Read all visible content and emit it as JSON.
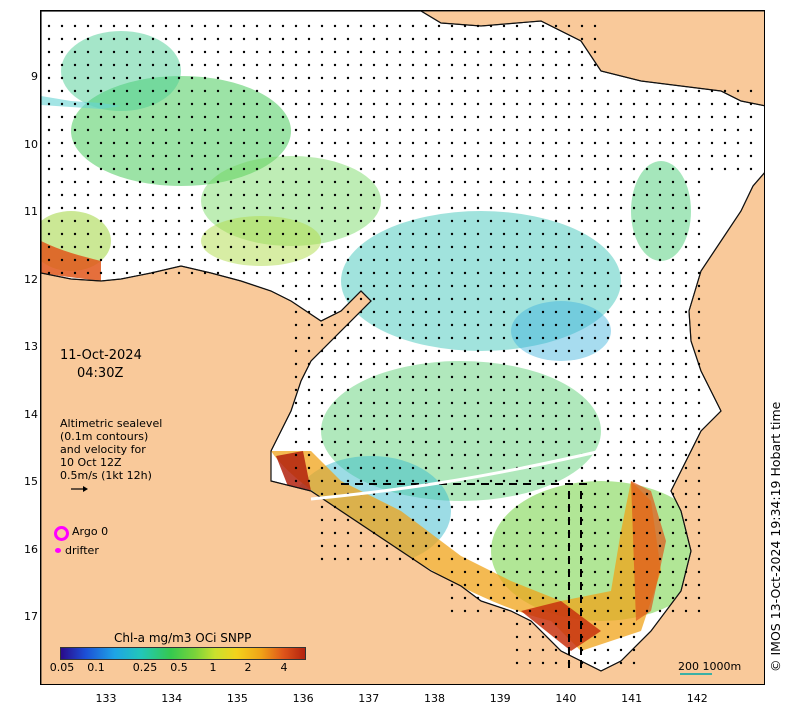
{
  "map": {
    "date": "11-Oct-2024",
    "time": "04:30Z",
    "legend_lines": [
      "Altimetric sealevel",
      "(0.1m contours)",
      "and velocity for",
      "10 Oct 12Z",
      "0.5m/s (1kt 12h)"
    ],
    "argo_label": "Argo 0",
    "drifter_label": "drifter",
    "credit": "© IMOS 13-Oct-2024 19:34:19 Hobart time",
    "scale_label": "200  1000m",
    "colorbar": {
      "title": "Chl-a mg/m3 OCi SNPP",
      "labels": [
        "0.05",
        "0.1",
        "0.25",
        "0.5",
        "1",
        "2",
        "4"
      ],
      "colors": [
        "#2a0a8a",
        "#1c4fd6",
        "#1ea4e6",
        "#35c94f",
        "#c8e02e",
        "#f0a318",
        "#b3220e"
      ]
    },
    "lat_labels": [
      "9",
      "10",
      "11",
      "12",
      "13",
      "14",
      "15",
      "16",
      "17"
    ],
    "lon_labels": [
      "133",
      "134",
      "135",
      "136",
      "137",
      "138",
      "139",
      "140",
      "141",
      "142"
    ],
    "land_color": "#f9c99a",
    "ocean_color": "#ffffff"
  }
}
